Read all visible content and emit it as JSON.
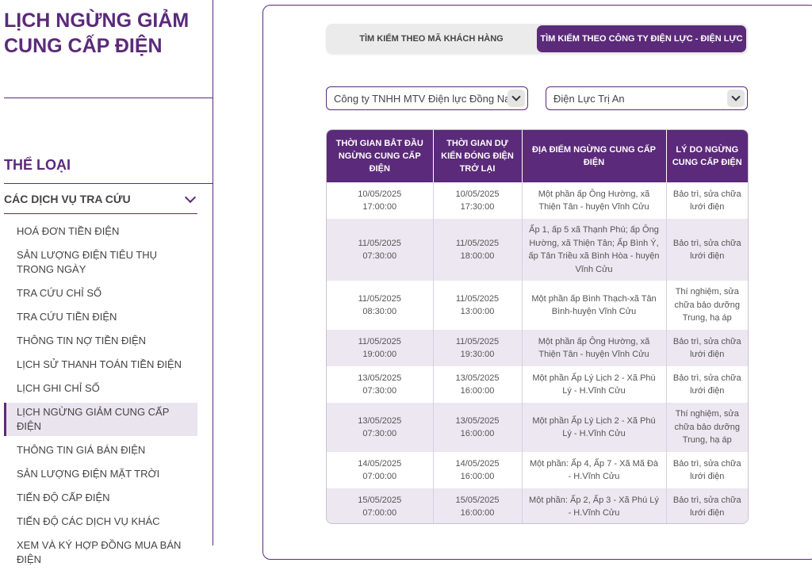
{
  "sidebar": {
    "title": "LỊCH NGỪNG GIẢM CUNG CẤP ĐIỆN",
    "category_heading": "THỂ LOẠI",
    "accordion_label": "CÁC DỊCH VỤ TRA CỨU",
    "menu": [
      {
        "label": "HOÁ ĐƠN TIỀN ĐIỆN",
        "active": false
      },
      {
        "label": "SẢN LƯỢNG ĐIỆN TIÊU THỤ TRONG NGÀY",
        "active": false
      },
      {
        "label": "TRA CỨU CHỈ SỐ",
        "active": false
      },
      {
        "label": "TRA CỨU TIỀN ĐIỆN",
        "active": false
      },
      {
        "label": "THÔNG TIN NỢ TIỀN ĐIỆN",
        "active": false
      },
      {
        "label": "LỊCH SỬ THANH TOÁN TIỀN ĐIỆN",
        "active": false
      },
      {
        "label": "LỊCH GHI CHỈ SỐ",
        "active": false
      },
      {
        "label": "LỊCH NGỪNG GIẢM CUNG CẤP ĐIỆN",
        "active": true
      },
      {
        "label": "THÔNG TIN GIÁ BÁN ĐIỆN",
        "active": false
      },
      {
        "label": "SẢN LƯỢNG ĐIỆN MẶT TRỜI",
        "active": false
      },
      {
        "label": "TIẾN ĐỘ CẤP ĐIỆN",
        "active": false
      },
      {
        "label": "TIẾN ĐỘ CÁC DỊCH VỤ KHÁC",
        "active": false
      },
      {
        "label": "XEM VÀ KÝ HỢP ĐỒNG MUA BÁN ĐIỆN",
        "active": false
      }
    ]
  },
  "tabs": {
    "customer": "TÌM KIẾM THEO MÃ KHÁCH HÀNG",
    "company": "TÌM KIẾM THEO CÔNG TY ĐIỆN LỰC - ĐIỆN LỰC"
  },
  "filters": {
    "company": "Công ty TNHH MTV Điện lực Đồng Nai",
    "branch": "Điện Lực Trị An"
  },
  "table": {
    "headers": {
      "start": "THỜI GIAN BẮT ĐẦU NGỪNG CUNG CẤP ĐIỆN",
      "end": "THỜI GIAN DỰ KIẾN ĐÓNG ĐIỆN TRỞ LẠI",
      "location": "ĐỊA ĐIỂM NGỪNG CUNG CẤP ĐIỆN",
      "reason": "LÝ DO NGỪNG CUNG CẤP ĐIỆN"
    },
    "rows": [
      {
        "start_date": "10/05/2025",
        "start_time": "17:00:00",
        "end_date": "10/05/2025",
        "end_time": "17:30:00",
        "location": "Một phần ấp Ông Hường, xã Thiện Tân - huyện Vĩnh Cửu",
        "reason": "Bảo trì, sửa chữa lưới điện"
      },
      {
        "start_date": "11/05/2025",
        "start_time": "07:30:00",
        "end_date": "11/05/2025",
        "end_time": "18:00:00",
        "location": "Ấp 1, ấp 5 xã Thạnh Phú; ấp Ông Hường, xã Thiện Tân; Ấp Bình Ý, ấp Tân Triều xã Bình Hòa - huyện Vĩnh Cửu",
        "reason": "Bảo trì, sửa chữa lưới điện"
      },
      {
        "start_date": "11/05/2025",
        "start_time": "08:30:00",
        "end_date": "11/05/2025",
        "end_time": "13:00:00",
        "location": "Một phần ấp Bình Thạch-xã Tân Bình-huyện Vĩnh Cửu",
        "reason": "Thí nghiệm, sửa chữa bảo dưỡng Trung, hạ áp"
      },
      {
        "start_date": "11/05/2025",
        "start_time": "19:00:00",
        "end_date": "11/05/2025",
        "end_time": "19:30:00",
        "location": "Một phần ấp Ông Hường, xã Thiện Tân - huyện Vĩnh Cửu",
        "reason": "Bảo trì, sửa chữa lưới điện"
      },
      {
        "start_date": "13/05/2025",
        "start_time": "07:30:00",
        "end_date": "13/05/2025",
        "end_time": "16:00:00",
        "location": "Một phần Ấp Lý Lịch 2 - Xã Phú Lý - H.Vĩnh Cửu",
        "reason": "Bảo trì, sửa chữa lưới điện"
      },
      {
        "start_date": "13/05/2025",
        "start_time": "07:30:00",
        "end_date": "13/05/2025",
        "end_time": "16:00:00",
        "location": "Một phần Ấp Lý Lịch 2 - Xã Phú Lý - H.Vĩnh Cửu",
        "reason": "Thí nghiệm, sửa chữa bảo dưỡng Trung, hạ áp"
      },
      {
        "start_date": "14/05/2025",
        "start_time": "07:00:00",
        "end_date": "14/05/2025",
        "end_time": "16:00:00",
        "location": "Một phần: Ấp 4, Ấp 7 - Xã Mã Đà - H.Vĩnh Cửu",
        "reason": "Bảo trì, sửa chữa lưới điện"
      },
      {
        "start_date": "15/05/2025",
        "start_time": "07:00:00",
        "end_date": "15/05/2025",
        "end_time": "16:00:00",
        "location": "Một phần: Ấp 2, Ấp 3 - Xã Phú Lý - H.Vĩnh Cửu",
        "reason": "Bảo trì, sửa chữa lưới điện"
      }
    ]
  }
}
